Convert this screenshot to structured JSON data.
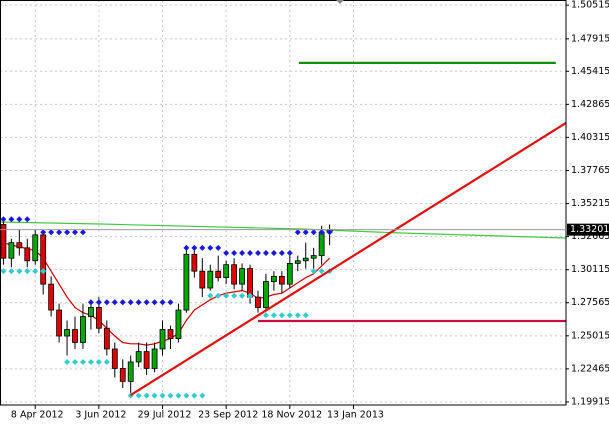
{
  "chart_data": {
    "type": "candlestick",
    "x": [
      "2012-03-11",
      "2012-03-18",
      "2012-03-25",
      "2012-04-01",
      "2012-04-08",
      "2012-04-15",
      "2012-04-22",
      "2012-04-29",
      "2012-05-06",
      "2012-05-13",
      "2012-05-20",
      "2012-05-27",
      "2012-06-03",
      "2012-06-10",
      "2012-06-17",
      "2012-06-24",
      "2012-07-01",
      "2012-07-08",
      "2012-07-15",
      "2012-07-22",
      "2012-07-29",
      "2012-08-05",
      "2012-08-12",
      "2012-08-19",
      "2012-08-26",
      "2012-09-02",
      "2012-09-09",
      "2012-09-16",
      "2012-09-23",
      "2012-09-30",
      "2012-10-07",
      "2012-10-14",
      "2012-10-21",
      "2012-10-28",
      "2012-11-04",
      "2012-11-11",
      "2012-11-18",
      "2012-11-25",
      "2012-12-02",
      "2012-12-09",
      "2012-12-16",
      "2012-12-23"
    ],
    "open": [
      1.336,
      1.31,
      1.322,
      1.318,
      1.308,
      1.328,
      1.29,
      1.27,
      1.25,
      1.255,
      1.245,
      1.265,
      1.272,
      1.256,
      1.24,
      1.225,
      1.215,
      1.23,
      1.238,
      1.225,
      1.24,
      1.255,
      1.248,
      1.27,
      1.313,
      1.3,
      1.287,
      1.3,
      1.295,
      1.305,
      1.29,
      1.302,
      1.28,
      1.272,
      1.292,
      1.296,
      1.29,
      1.306,
      1.308,
      1.31,
      1.312,
      1.33
    ],
    "high": [
      1.339,
      1.325,
      1.332,
      1.325,
      1.332,
      1.33,
      1.296,
      1.275,
      1.262,
      1.265,
      1.275,
      1.278,
      1.28,
      1.262,
      1.245,
      1.232,
      1.235,
      1.245,
      1.245,
      1.245,
      1.262,
      1.258,
      1.275,
      1.32,
      1.318,
      1.31,
      1.305,
      1.312,
      1.308,
      1.31,
      1.306,
      1.305,
      1.285,
      1.298,
      1.3,
      1.3,
      1.315,
      1.312,
      1.322,
      1.318,
      1.335,
      1.336
    ],
    "low": [
      1.305,
      1.303,
      1.312,
      1.303,
      1.305,
      1.282,
      1.265,
      1.245,
      1.235,
      1.24,
      1.24,
      1.255,
      1.252,
      1.235,
      1.218,
      1.21,
      1.206,
      1.226,
      1.22,
      1.222,
      1.235,
      1.24,
      1.245,
      1.268,
      1.295,
      1.28,
      1.285,
      1.292,
      1.29,
      1.286,
      1.285,
      1.275,
      1.268,
      1.27,
      1.285,
      1.283,
      1.287,
      1.3,
      1.302,
      1.3,
      1.305,
      1.32
    ],
    "close": [
      1.31,
      1.322,
      1.318,
      1.308,
      1.328,
      1.29,
      1.27,
      1.25,
      1.255,
      1.245,
      1.265,
      1.272,
      1.256,
      1.24,
      1.225,
      1.215,
      1.23,
      1.238,
      1.225,
      1.24,
      1.255,
      1.248,
      1.27,
      1.313,
      1.3,
      1.287,
      1.3,
      1.295,
      1.305,
      1.29,
      1.302,
      1.28,
      1.272,
      1.292,
      1.296,
      1.29,
      1.306,
      1.308,
      1.31,
      1.312,
      1.33,
      1.332
    ],
    "up_color": "#00a800",
    "down_color": "#e00000",
    "overlays": [
      {
        "type": "line",
        "color": "#44c844",
        "x": [
          "2012-03-08",
          "2012-06-04",
          "2012-11-28",
          "2013-02-24",
          "2013-07-19"
        ],
        "values": [
          1.3379,
          1.3364,
          1.3325,
          1.3294,
          1.3256
        ]
      },
      {
        "type": "line",
        "color": "#d00000",
        "x": [
          "2012-03-11",
          "2012-03-18",
          "2012-03-25",
          "2012-04-01",
          "2012-04-08",
          "2012-04-15",
          "2012-04-22",
          "2012-04-29",
          "2012-05-06",
          "2012-05-13",
          "2012-05-20",
          "2012-05-27",
          "2012-06-03",
          "2012-06-10",
          "2012-06-17",
          "2012-06-24",
          "2012-07-01",
          "2012-07-08",
          "2012-07-15",
          "2012-07-22",
          "2012-07-29",
          "2012-08-05",
          "2012-08-12",
          "2012-08-19",
          "2012-08-26",
          "2012-09-02",
          "2012-09-09",
          "2012-09-16",
          "2012-09-23",
          "2012-09-30",
          "2012-10-07",
          "2012-10-14",
          "2012-10-21",
          "2012-10-28",
          "2012-11-04",
          "2012-11-11",
          "2012-11-18",
          "2012-11-25",
          "2012-12-02",
          "2012-12-09",
          "2012-12-16",
          "2012-12-23"
        ],
        "values": [
          1.322,
          1.32,
          1.319,
          1.317,
          1.316,
          1.31,
          1.3,
          1.29,
          1.28,
          1.272,
          1.268,
          1.266,
          1.262,
          1.256,
          1.25,
          1.245,
          1.244,
          1.244,
          1.243,
          1.244,
          1.246,
          1.248,
          1.252,
          1.262,
          1.27,
          1.274,
          1.278,
          1.281,
          1.283,
          1.284,
          1.285,
          1.283,
          1.279,
          1.28,
          1.282,
          1.283,
          1.287,
          1.291,
          1.295,
          1.298,
          1.304,
          1.31
        ]
      },
      {
        "type": "markers",
        "color": "#1a1ae0",
        "x": [
          "2012-03-11",
          "2012-03-18",
          "2012-03-25",
          "2012-04-01",
          "2012-04-08",
          "2012-04-15",
          "2012-04-22",
          "2012-04-29",
          "2012-05-06",
          "2012-05-13",
          "2012-05-20",
          "2012-05-27",
          "2012-06-03",
          "2012-06-10",
          "2012-06-17",
          "2012-06-24",
          "2012-07-01",
          "2012-07-08",
          "2012-07-15",
          "2012-07-22",
          "2012-07-29",
          "2012-08-05",
          "2012-08-12",
          "2012-08-19",
          "2012-08-26",
          "2012-09-02",
          "2012-09-09",
          "2012-09-16",
          "2012-09-23",
          "2012-09-30",
          "2012-10-07",
          "2012-10-14",
          "2012-10-21",
          "2012-10-28",
          "2012-11-04",
          "2012-11-11",
          "2012-11-18",
          "2012-11-25",
          "2012-12-02",
          "2012-12-09",
          "2012-12-16",
          "2012-12-23"
        ],
        "values": [
          1.34,
          1.34,
          1.34,
          1.34,
          null,
          1.33,
          1.33,
          1.33,
          1.33,
          1.33,
          1.33,
          1.276,
          1.276,
          1.276,
          1.276,
          1.276,
          1.276,
          1.276,
          1.276,
          1.276,
          1.276,
          1.276,
          null,
          1.318,
          1.318,
          1.318,
          1.318,
          1.318,
          1.314,
          1.314,
          1.314,
          1.314,
          1.314,
          1.314,
          1.314,
          1.314,
          1.314,
          1.33,
          1.33,
          1.33,
          1.33,
          1.33
        ]
      },
      {
        "type": "markers",
        "color": "#33cccc",
        "x": [
          "2012-03-11",
          "2012-03-18",
          "2012-03-25",
          "2012-04-01",
          "2012-04-08",
          "2012-04-15",
          "2012-04-22",
          "2012-04-29",
          "2012-05-06",
          "2012-05-13",
          "2012-05-20",
          "2012-05-27",
          "2012-06-03",
          "2012-06-10",
          "2012-06-17",
          "2012-06-24",
          "2012-07-01",
          "2012-07-08",
          "2012-07-15",
          "2012-07-22",
          "2012-07-29",
          "2012-08-05",
          "2012-08-12",
          "2012-08-19",
          "2012-08-26",
          "2012-09-02",
          "2012-09-09",
          "2012-09-16",
          "2012-09-23",
          "2012-09-30",
          "2012-10-07",
          "2012-10-14",
          "2012-10-21",
          "2012-10-28",
          "2012-11-04",
          "2012-11-11",
          "2012-11-18",
          "2012-11-25",
          "2012-12-02",
          "2012-12-09",
          "2012-12-16",
          "2012-12-23"
        ],
        "values": [
          1.3,
          1.3,
          1.3,
          1.3,
          1.3,
          1.3,
          null,
          null,
          1.23,
          1.23,
          1.23,
          1.23,
          1.23,
          1.23,
          null,
          null,
          1.204,
          1.204,
          1.204,
          1.204,
          1.204,
          1.204,
          1.204,
          1.204,
          1.204,
          1.204,
          1.281,
          1.281,
          1.281,
          1.281,
          1.281,
          1.281,
          null,
          1.266,
          1.266,
          1.266,
          1.266,
          1.266,
          1.266,
          1.3,
          1.3,
          1.3
        ]
      },
      {
        "type": "segment",
        "color": "#109010",
        "x": [
          "2012-11-26",
          "2013-07-10"
        ],
        "values": [
          1.4606,
          1.4606
        ]
      },
      {
        "type": "segment",
        "color": "#c8103a",
        "x": [
          "2012-10-21",
          "2013-07-19"
        ],
        "values": [
          1.2616,
          1.2616
        ]
      },
      {
        "type": "segment",
        "color": "#e01010",
        "x": [
          "2012-07-01",
          "2013-07-19"
        ],
        "values": [
          1.2045,
          1.4143
        ]
      }
    ],
    "last_price": 1.33201,
    "xlim": [
      "2012-03-08",
      "2013-07-19"
    ],
    "xticks": [
      {
        "value": "2012-04-08",
        "label": "8 Apr 2012"
      },
      {
        "value": "2012-06-03",
        "label": "3 Jun 2012"
      },
      {
        "value": "2012-07-29",
        "label": "29 Jul 2012"
      },
      {
        "value": "2012-09-23",
        "label": "23 Sep 2012"
      },
      {
        "value": "2012-11-18",
        "label": "18 Nov 2012"
      },
      {
        "value": "2013-01-13",
        "label": "13 Jan 2013"
      }
    ],
    "ylim": [
      1.1968,
      1.5091
    ],
    "yticks": [
      1.50515,
      1.47915,
      1.45415,
      1.42865,
      1.40315,
      1.37765,
      1.35215,
      1.32665,
      1.30115,
      1.27565,
      1.25015,
      1.22465,
      1.19915
    ],
    "grid": true
  }
}
